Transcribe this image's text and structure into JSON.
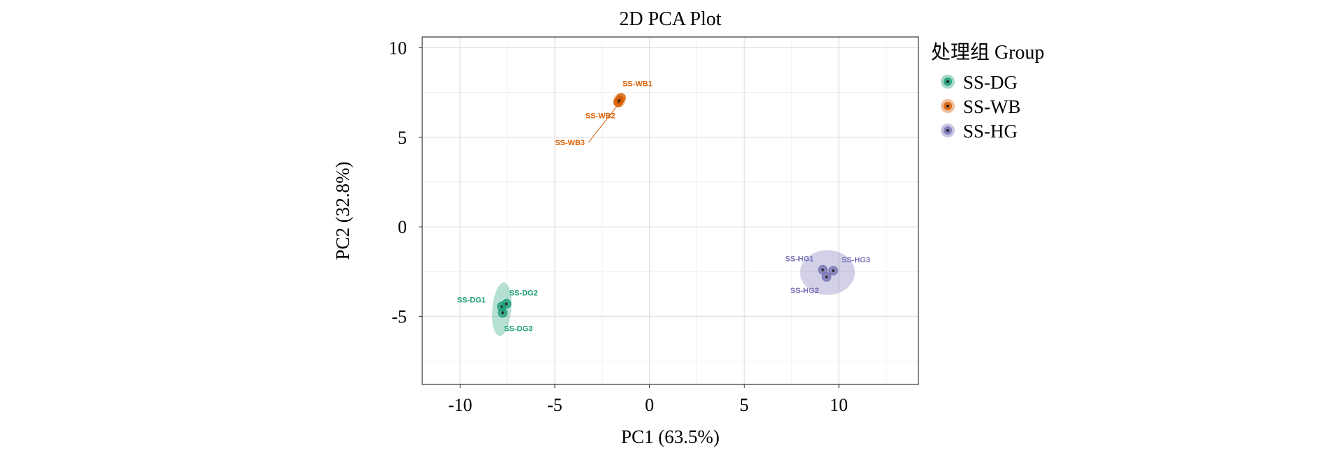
{
  "chart_data": {
    "type": "scatter",
    "title": "2D PCA Plot",
    "xlabel": "PC1 (63.5%)",
    "ylabel": "PC2 (32.8%)",
    "xlim": [
      -12,
      14.2
    ],
    "ylim": [
      -8.8,
      10.6
    ],
    "x_ticks": [
      -10,
      -5,
      0,
      5,
      10
    ],
    "x_tick_labels": [
      "-10",
      "-5",
      "0",
      "5",
      "10"
    ],
    "y_ticks": [
      10,
      5,
      0,
      -5
    ],
    "y_tick_labels": [
      "10",
      "5",
      "0",
      "-5"
    ],
    "grid": true,
    "legend_title": "处理组 Group",
    "legend_position": "right",
    "series": [
      {
        "name": "SS-DG",
        "color": "#1b9e77",
        "ellipse": {
          "cx": -7.8,
          "cy": -4.6,
          "rx": 0.5,
          "ry": 1.5,
          "angle_deg": 5
        },
        "points": [
          {
            "label": "SS-DG1",
            "x": -7.8,
            "y": -4.45
          },
          {
            "label": "SS-DG2",
            "x": -7.55,
            "y": -4.3
          },
          {
            "label": "SS-DG3",
            "x": -7.75,
            "y": -4.8
          }
        ]
      },
      {
        "name": "SS-WB",
        "color": "#d95f02",
        "ellipse": {
          "cx": -1.6,
          "cy": 7.05,
          "rx": 0.32,
          "ry": 0.38,
          "angle_deg": 0
        },
        "points": [
          {
            "label": "SS-WB1",
            "x": -1.5,
            "y": 7.2
          },
          {
            "label": "SS-WB2",
            "x": -1.65,
            "y": 6.95
          },
          {
            "label": "SS-WB3",
            "x": -1.6,
            "y": 7.05
          }
        ]
      },
      {
        "name": "SS-HG",
        "color": "#7570b3",
        "ellipse": {
          "cx": 9.4,
          "cy": -2.55,
          "rx": 1.45,
          "ry": 1.25,
          "angle_deg": 0
        },
        "points": [
          {
            "label": "SS-HG1",
            "x": 9.15,
            "y": -2.4
          },
          {
            "label": "SS-HG2",
            "x": 9.35,
            "y": -2.8
          },
          {
            "label": "SS-HG3",
            "x": 9.7,
            "y": -2.45
          }
        ]
      }
    ]
  }
}
